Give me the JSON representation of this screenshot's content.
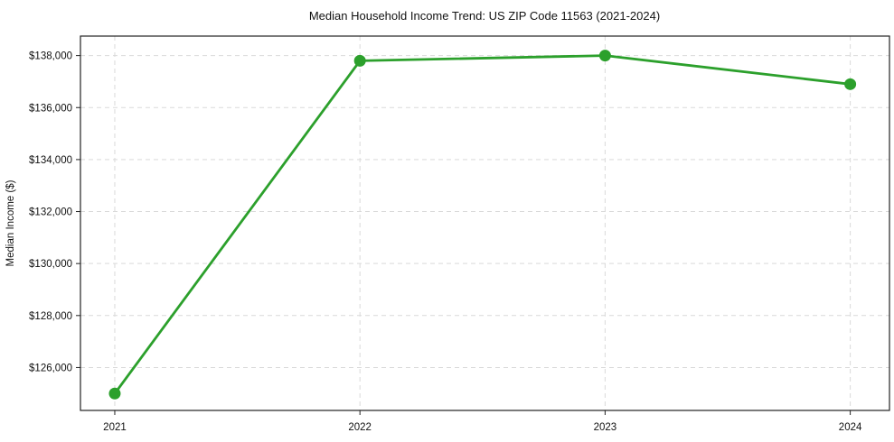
{
  "chart_data": {
    "type": "line",
    "title": "Median Household Income Trend: US ZIP Code 11563 (2021-2024)",
    "xlabel": "",
    "ylabel": "Median Income ($)",
    "x": [
      2021,
      2022,
      2023,
      2024
    ],
    "series": [
      {
        "name": "Median Household Income",
        "values": [
          125000,
          137800,
          138000,
          136900
        ],
        "color": "#2ca02c"
      }
    ],
    "xticks": [
      2021,
      2022,
      2023,
      2024
    ],
    "xtick_labels": [
      "2021",
      "2022",
      "2023",
      "2024"
    ],
    "yticks": [
      126000,
      128000,
      130000,
      132000,
      134000,
      136000,
      138000
    ],
    "ytick_labels": [
      "$126,000",
      "$128,000",
      "$130,000",
      "$132,000",
      "$134,000",
      "$136,000",
      "$138,000"
    ],
    "xlim": [
      2020.86,
      2024.16
    ],
    "ylim": [
      124350,
      138750
    ],
    "grid": true,
    "grid_style": "dashed",
    "legend": "none",
    "marker": "circle",
    "colors": {
      "line": "#2ca02c",
      "grid": "#d9d9d9",
      "axis": "#222222",
      "text": "#111111",
      "background": "#ffffff"
    }
  }
}
